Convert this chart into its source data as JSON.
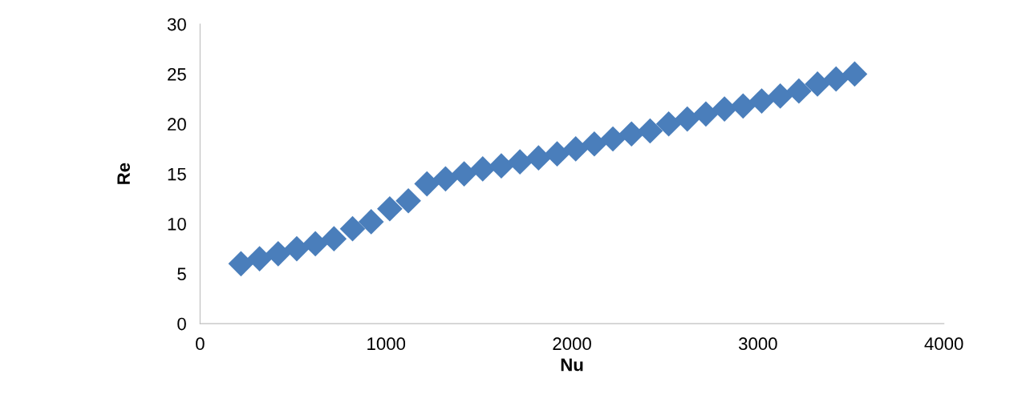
{
  "chart_data": {
    "type": "scatter",
    "xlabel": "Nu",
    "ylabel": "Re",
    "marker": "diamond",
    "grid": false,
    "legend": false,
    "xlim": [
      0,
      4000
    ],
    "xticks": [
      0,
      1000,
      2000,
      3000,
      4000
    ],
    "ylim": [
      0,
      30
    ],
    "yticks": [
      0,
      5,
      10,
      15,
      20,
      25,
      30
    ],
    "x": [
      220,
      320,
      420,
      520,
      620,
      720,
      820,
      920,
      1020,
      1120,
      1220,
      1320,
      1420,
      1520,
      1620,
      1720,
      1820,
      1920,
      2020,
      2120,
      2220,
      2320,
      2420,
      2520,
      2620,
      2720,
      2820,
      2920,
      3020,
      3120,
      3220,
      3320,
      3420,
      3520
    ],
    "series": [
      {
        "color": "#4a7ebb",
        "values": [
          6.0,
          6.5,
          7.0,
          7.5,
          8.0,
          8.5,
          9.5,
          10.2,
          11.5,
          12.3,
          14.0,
          14.5,
          15.0,
          15.5,
          15.8,
          16.2,
          16.6,
          17.0,
          17.5,
          18.0,
          18.5,
          19.0,
          19.3,
          20.0,
          20.5,
          21.0,
          21.5,
          21.8,
          22.3,
          22.8,
          23.3,
          24.0,
          24.5,
          25.0
        ]
      }
    ]
  }
}
